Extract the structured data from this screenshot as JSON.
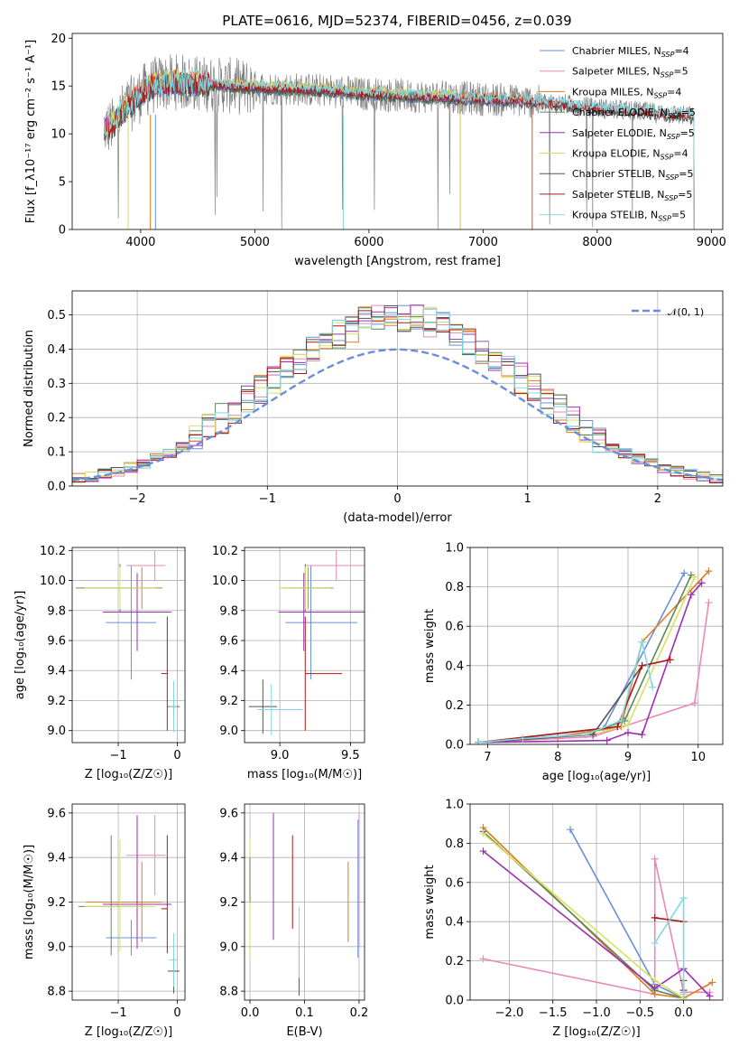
{
  "title": "PLATE=0616, MJD=52374, FIBERID=0456, z=0.039",
  "colors": {
    "chabrier_miles": "#6a8fd8",
    "salpeter_miles": "#e889b8",
    "kroupa_miles": "#e07b1f",
    "chabrier_elodie": "#5a8a5a",
    "salpeter_elodie": "#9b30b0",
    "kroupa_elodie": "#d8e060",
    "chabrier_stelib": "#555555",
    "salpeter_stelib": "#b01818",
    "kroupa_stelib": "#80d8e0",
    "data": "#808080",
    "normal": "#6a8fd8"
  },
  "chart_data": [
    {
      "id": "spectrum",
      "type": "line",
      "xlabel": "wavelength [Angstrom, rest frame]",
      "ylabel": "Flux [f_λ10⁻¹⁷ erg cm⁻² s⁻¹ A⁻¹]",
      "xlim": [
        3400,
        9100
      ],
      "ylim": [
        0,
        20.5
      ],
      "xticks": [
        "4000",
        "5000",
        "6000",
        "7000",
        "8000",
        "9000"
      ],
      "yticks": [
        "0",
        "5",
        "10",
        "15",
        "20"
      ],
      "legend": [
        "Chabrier MILES, N_SSP=4",
        "Salpeter MILES, N_SSP=5",
        "Kroupa MILES, N_SSP=4",
        "Chabrier ELODIE, N_SSP=5",
        "Salpeter ELODIE, N_SSP=5",
        "Kroupa ELODIE, N_SSP=4",
        "Chabrier STELIB, N_SSP=5",
        "Salpeter STELIB, N_SSP=5",
        "Kroupa STELIB, N_SSP=5"
      ],
      "continuum": {
        "x": [
          3680,
          3750,
          3850,
          3950,
          4050,
          4150,
          4300,
          4500,
          4700,
          4900,
          5100,
          5300,
          5500,
          5700,
          5900,
          6100,
          6300,
          6500,
          6700,
          6900,
          7100,
          7300,
          7500,
          7700,
          7900,
          8100,
          8300,
          8500,
          8700,
          8850
        ],
        "y": [
          10.5,
          10.8,
          12.5,
          13.5,
          14.7,
          15.2,
          15.4,
          15.3,
          15.1,
          14.9,
          14.8,
          14.7,
          14.6,
          14.5,
          14.2,
          14.1,
          14.0,
          13.9,
          13.8,
          13.7,
          13.6,
          13.5,
          13.3,
          13.1,
          12.8,
          12.6,
          12.4,
          12.2,
          12.0,
          11.8
        ]
      },
      "note_models_end": {
        "miles": 7430,
        "elodie": 6800,
        "stelib": 8850
      }
    },
    {
      "id": "residuals",
      "type": "bar",
      "xlabel": "(data-model)/error",
      "ylabel": "Normed distribution",
      "xlim": [
        -2.5,
        2.5
      ],
      "ylim": [
        0,
        0.57
      ],
      "xticks": [
        "−2",
        "−1",
        "0",
        "1",
        "2"
      ],
      "yticks": [
        "0.0",
        "0.1",
        "0.2",
        "0.3",
        "0.4",
        "0.5"
      ],
      "legend": "𝒩(0, 1)",
      "bin_width": 0.1,
      "bin_start": -2.5
    },
    {
      "id": "age_vs_Z",
      "type": "scatter",
      "xlabel": "Z [log₁₀(Z/Z☉)]",
      "ylabel": "age  [log₁₀(age/yr)]",
      "xlim": [
        -1.78,
        0.13
      ],
      "ylim": [
        8.92,
        10.22
      ],
      "xticks": [
        "−1",
        "0"
      ],
      "yticks": [
        "9.0",
        "9.2",
        "9.4",
        "9.6",
        "9.8",
        "10.0",
        "10.2"
      ],
      "points": [
        {
          "series": "chabrier_miles",
          "x": -0.78,
          "y": 9.72,
          "xerr": [
            0.43,
            0.42
          ],
          "yerr": [
            0.38,
            0.38
          ]
        },
        {
          "series": "salpeter_miles",
          "x": -0.38,
          "y": 10.1,
          "xerr": [
            0.48,
            0.18
          ],
          "yerr": [
            0.1,
            0.1
          ]
        },
        {
          "series": "kroupa_miles",
          "x": -0.6,
          "y": 9.95,
          "xerr": [
            0.95,
            0.35
          ],
          "yerr": [
            0.14,
            0.14
          ]
        },
        {
          "series": "chabrier_elodie",
          "x": -0.97,
          "y": 9.95,
          "xerr": [
            0.75,
            0.6
          ],
          "yerr": [
            0.16,
            0.16
          ]
        },
        {
          "series": "salpeter_elodie",
          "x": -0.68,
          "y": 9.79,
          "xerr": [
            0.58,
            0.58
          ],
          "yerr": [
            0.26,
            0.26
          ]
        },
        {
          "series": "kroupa_elodie",
          "x": -0.97,
          "y": 9.95,
          "xerr": [
            0.6,
            0.6
          ],
          "yerr": [
            0.14,
            0.14
          ]
        },
        {
          "series": "chabrier_stelib",
          "x": -0.06,
          "y": 9.16,
          "xerr": [
            0.1,
            0.1
          ],
          "yerr": [
            0.05,
            0.05
          ]
        },
        {
          "series": "salpeter_stelib",
          "x": -0.17,
          "y": 9.38,
          "xerr": [
            0.1,
            0.0
          ],
          "yerr": [
            0.38,
            0.38
          ]
        },
        {
          "series": "kroupa_stelib",
          "x": -0.06,
          "y": 9.16,
          "xerr": [
            0.08,
            0.06
          ],
          "yerr": [
            0.17,
            0.17
          ]
        }
      ]
    },
    {
      "id": "age_vs_mass",
      "type": "scatter",
      "xlabel": "mass [log₁₀(M/M☉)]",
      "ylabel": "",
      "xlim": [
        8.75,
        9.6
      ],
      "ylim": [
        8.92,
        10.22
      ],
      "xticks": [
        "9.0",
        "9.5"
      ],
      "yticks": [
        "9.0",
        "9.2",
        "9.4",
        "9.6",
        "9.8",
        "10.0",
        "10.2"
      ],
      "points": [
        {
          "series": "chabrier_miles",
          "x": 9.22,
          "y": 9.72,
          "xerr": [
            0.18,
            0.33
          ],
          "yerr": [
            0.38,
            0.38
          ]
        },
        {
          "series": "salpeter_miles",
          "x": 9.4,
          "y": 10.1,
          "xerr": [
            0.22,
            0.2
          ],
          "yerr": [
            0.1,
            0.1
          ]
        },
        {
          "series": "kroupa_miles",
          "x": 9.2,
          "y": 9.95,
          "xerr": [
            0.18,
            0.18
          ],
          "yerr": [
            0.14,
            0.14
          ]
        },
        {
          "series": "chabrier_elodie",
          "x": 9.18,
          "y": 9.95,
          "xerr": [
            0.16,
            0.18
          ],
          "yerr": [
            0.16,
            0.16
          ]
        },
        {
          "series": "salpeter_elodie",
          "x": 9.17,
          "y": 9.79,
          "xerr": [
            0.18,
            0.44
          ],
          "yerr": [
            0.26,
            0.26
          ]
        },
        {
          "series": "kroupa_elodie",
          "x": 9.18,
          "y": 9.95,
          "xerr": [
            0.18,
            0.18
          ],
          "yerr": [
            0.14,
            0.14
          ]
        },
        {
          "series": "chabrier_stelib",
          "x": 8.88,
          "y": 9.16,
          "xerr": [
            0.1,
            0.1
          ],
          "yerr": [
            0.18,
            0.18
          ]
        },
        {
          "series": "salpeter_stelib",
          "x": 9.18,
          "y": 9.38,
          "xerr": [
            0.0,
            0.26
          ],
          "yerr": [
            0.38,
            0.38
          ]
        },
        {
          "series": "kroupa_stelib",
          "x": 8.94,
          "y": 9.14,
          "xerr": [
            0.1,
            0.22
          ],
          "yerr": [
            0.17,
            0.17
          ]
        }
      ]
    },
    {
      "id": "weight_vs_age",
      "type": "line",
      "xlabel": "age  [log₁₀(age/yr)]",
      "ylabel": "mass weight",
      "xlim": [
        6.75,
        10.35
      ],
      "ylim": [
        0,
        1
      ],
      "xticks": [
        "7",
        "8",
        "9",
        "10"
      ],
      "yticks": [
        "0.0",
        "0.2",
        "0.4",
        "0.6",
        "0.8",
        "1.0"
      ],
      "series": [
        {
          "name": "Chabrier MILES",
          "color": "chabrier_miles",
          "x": [
            6.87,
            8.65,
            9.8
          ],
          "y": [
            0.01,
            0.08,
            0.87
          ]
        },
        {
          "name": "Salpeter MILES",
          "color": "salpeter_miles",
          "x": [
            6.87,
            8.0,
            8.5,
            9.95,
            10.15
          ],
          "y": [
            0.01,
            0.03,
            0.04,
            0.21,
            0.72
          ]
        },
        {
          "name": "Kroupa MILES",
          "color": "kroupa_miles",
          "x": [
            6.87,
            8.0,
            8.9,
            9.2,
            10.15
          ],
          "y": [
            0.01,
            0.04,
            0.09,
            0.52,
            0.88
          ]
        },
        {
          "name": "Chabrier ELODIE",
          "color": "chabrier_elodie",
          "x": [
            6.87,
            7.5,
            8.4,
            8.95,
            9.9
          ],
          "y": [
            0.01,
            0.03,
            0.05,
            0.12,
            0.86
          ]
        },
        {
          "name": "Salpeter ELODIE",
          "color": "salpeter_elodie",
          "x": [
            6.87,
            8.7,
            9.0,
            9.2,
            9.9,
            10.05
          ],
          "y": [
            0.01,
            0.02,
            0.06,
            0.05,
            0.76,
            0.82
          ]
        },
        {
          "name": "Kroupa ELODIE",
          "color": "kroupa_elodie",
          "x": [
            6.87,
            8.5,
            9.0,
            9.95
          ],
          "y": [
            0.01,
            0.05,
            0.1,
            0.85
          ]
        },
        {
          "name": "Chabrier STELIB",
          "color": "chabrier_stelib",
          "x": [
            6.87,
            8.5,
            9.2
          ],
          "y": [
            0.01,
            0.05,
            0.4
          ]
        },
        {
          "name": "Salpeter STELIB",
          "color": "salpeter_stelib",
          "x": [
            6.87,
            8.85,
            9.2,
            9.6
          ],
          "y": [
            0.01,
            0.09,
            0.4,
            0.43
          ]
        },
        {
          "name": "Kroupa STELIB",
          "color": "kroupa_stelib",
          "x": [
            6.87,
            7.5,
            8.4,
            8.9,
            9.2,
            9.35
          ],
          "y": [
            0.01,
            0.03,
            0.05,
            0.12,
            0.52,
            0.29
          ]
        }
      ]
    },
    {
      "id": "mass_vs_Z",
      "type": "scatter",
      "xlabel": "Z [log₁₀(Z/Z☉)]",
      "ylabel": "mass [log₁₀(M/M☉)]",
      "xlim": [
        -1.78,
        0.13
      ],
      "ylim": [
        8.76,
        9.64
      ],
      "xticks": [
        "−1",
        "0"
      ],
      "yticks": [
        "8.8",
        "9.0",
        "9.2",
        "9.4",
        "9.6"
      ],
      "points": [
        {
          "series": "chabrier_miles",
          "x": -0.78,
          "y": 9.04,
          "xerr": [
            0.43,
            0.42
          ],
          "yerr": [
            0.08,
            0.08
          ]
        },
        {
          "series": "salpeter_miles",
          "x": -0.38,
          "y": 9.41,
          "xerr": [
            0.48,
            0.18
          ],
          "yerr": [
            0.18,
            0.18
          ]
        },
        {
          "series": "kroupa_miles",
          "x": -0.6,
          "y": 9.2,
          "xerr": [
            0.95,
            0.35
          ],
          "yerr": [
            0.18,
            0.18
          ]
        },
        {
          "series": "chabrier_elodie",
          "x": -1.12,
          "y": 9.18,
          "xerr": [
            0.55,
            0.55
          ],
          "yerr": [
            0.22,
            0.32
          ]
        },
        {
          "series": "salpeter_elodie",
          "x": -0.68,
          "y": 9.19,
          "xerr": [
            0.58,
            0.58
          ],
          "yerr": [
            0.2,
            0.4
          ]
        },
        {
          "series": "kroupa_elodie",
          "x": -0.97,
          "y": 9.18,
          "xerr": [
            0.6,
            0.6
          ],
          "yerr": [
            0.2,
            0.3
          ]
        },
        {
          "series": "chabrier_stelib",
          "x": -0.06,
          "y": 8.89,
          "xerr": [
            0.1,
            0.1
          ],
          "yerr": [
            0.1,
            0.06
          ]
        },
        {
          "series": "salpeter_stelib",
          "x": -0.17,
          "y": 9.17,
          "xerr": [
            0.1,
            0.0
          ],
          "yerr": [
            0.2,
            0.33
          ]
        },
        {
          "series": "kroupa_stelib",
          "x": -0.06,
          "y": 8.94,
          "xerr": [
            0.08,
            0.06
          ],
          "yerr": [
            0.12,
            0.12
          ]
        }
      ]
    },
    {
      "id": "mass_vs_EBV",
      "type": "scatter",
      "xlabel": "E(B-V)",
      "ylabel": "",
      "xlim": [
        -0.01,
        0.21
      ],
      "ylim": [
        8.76,
        9.64
      ],
      "xticks": [
        "0.0",
        "0.1",
        "0.2"
      ],
      "yticks": [
        "8.8",
        "9.0",
        "9.2",
        "9.4",
        "9.6"
      ],
      "points": [
        {
          "series": "kroupa_elodie",
          "x": 0.0,
          "y": 9.22,
          "yerr": [
            0.27,
            0.26
          ]
        },
        {
          "series": "chabrier_elodie",
          "x": 0.0,
          "y": 9.3,
          "yerr": [
            0.1,
            0.1
          ]
        },
        {
          "series": "salpeter_elodie",
          "x": 0.043,
          "y": 9.3,
          "yerr": [
            0.27,
            0.3
          ]
        },
        {
          "series": "salpeter_stelib",
          "x": 0.078,
          "y": 9.3,
          "yerr": [
            0.22,
            0.2
          ]
        },
        {
          "series": "chabrier_stelib",
          "x": 0.09,
          "y": 8.9,
          "yerr": [
            0.12,
            0.12
          ]
        },
        {
          "series": "kroupa_stelib",
          "x": 0.09,
          "y": 9.02,
          "yerr": [
            0.16,
            0.16
          ]
        },
        {
          "series": "kroupa_miles",
          "x": 0.18,
          "y": 9.2,
          "yerr": [
            0.18,
            0.18
          ]
        },
        {
          "series": "chabrier_miles",
          "x": 0.198,
          "y": 9.25,
          "yerr": [
            0.3,
            0.32
          ]
        },
        {
          "series": "salpeter_miles",
          "x": 0.2,
          "y": 9.3,
          "yerr": [
            0.3,
            0.3
          ]
        }
      ]
    },
    {
      "id": "weight_vs_Z",
      "type": "line",
      "xlabel": "Z [log₁₀(Z/Z☉)]",
      "ylabel": "mass weight",
      "xlim": [
        -2.45,
        0.45
      ],
      "ylim": [
        0,
        1
      ],
      "xticks": [
        "−2.0",
        "−1.5",
        "−1.0",
        "−0.5",
        "0.0"
      ],
      "yticks": [
        "0.0",
        "0.2",
        "0.4",
        "0.6",
        "0.8",
        "1.0"
      ],
      "series": [
        {
          "name": "Chabrier MILES",
          "color": "chabrier_miles",
          "x": [
            -1.3,
            -0.33,
            0.0
          ],
          "y": [
            0.87,
            0.08,
            0.01
          ]
        },
        {
          "name": "Salpeter MILES",
          "color": "salpeter_miles",
          "x": [
            -2.3,
            -0.33,
            -0.33,
            0.0,
            0.3
          ],
          "y": [
            0.21,
            0.03,
            0.72,
            0.04,
            0.04
          ]
        },
        {
          "name": "Kroupa MILES",
          "color": "kroupa_miles",
          "x": [
            -2.3,
            -0.33,
            0.0,
            0.33
          ],
          "y": [
            0.88,
            0.03,
            0.01,
            0.09
          ]
        },
        {
          "name": "Chabrier ELODIE",
          "color": "chabrier_elodie",
          "x": [
            -2.3,
            -0.33,
            0.0
          ],
          "y": [
            0.86,
            0.05,
            0.01
          ]
        },
        {
          "name": "Salpeter ELODIE",
          "color": "salpeter_elodie",
          "x": [
            -2.3,
            -0.33,
            0.0,
            0.3
          ],
          "y": [
            0.76,
            0.06,
            0.16,
            0.02
          ]
        },
        {
          "name": "Kroupa ELODIE",
          "color": "kroupa_elodie",
          "x": [
            -2.3,
            -0.33,
            0.0
          ],
          "y": [
            0.85,
            0.1,
            0.01
          ]
        },
        {
          "name": "Chabrier STELIB",
          "color": "chabrier_stelib",
          "x": [
            0.0,
            0.0
          ],
          "y": [
            0.1,
            0.05
          ]
        },
        {
          "name": "Salpeter STELIB",
          "color": "salpeter_stelib",
          "x": [
            -0.33,
            0.0
          ],
          "y": [
            0.42,
            0.4
          ]
        },
        {
          "name": "Kroupa STELIB",
          "color": "kroupa_stelib",
          "x": [
            -0.33,
            0.0,
            0.0
          ],
          "y": [
            0.29,
            0.52,
            0.03
          ]
        }
      ]
    }
  ]
}
